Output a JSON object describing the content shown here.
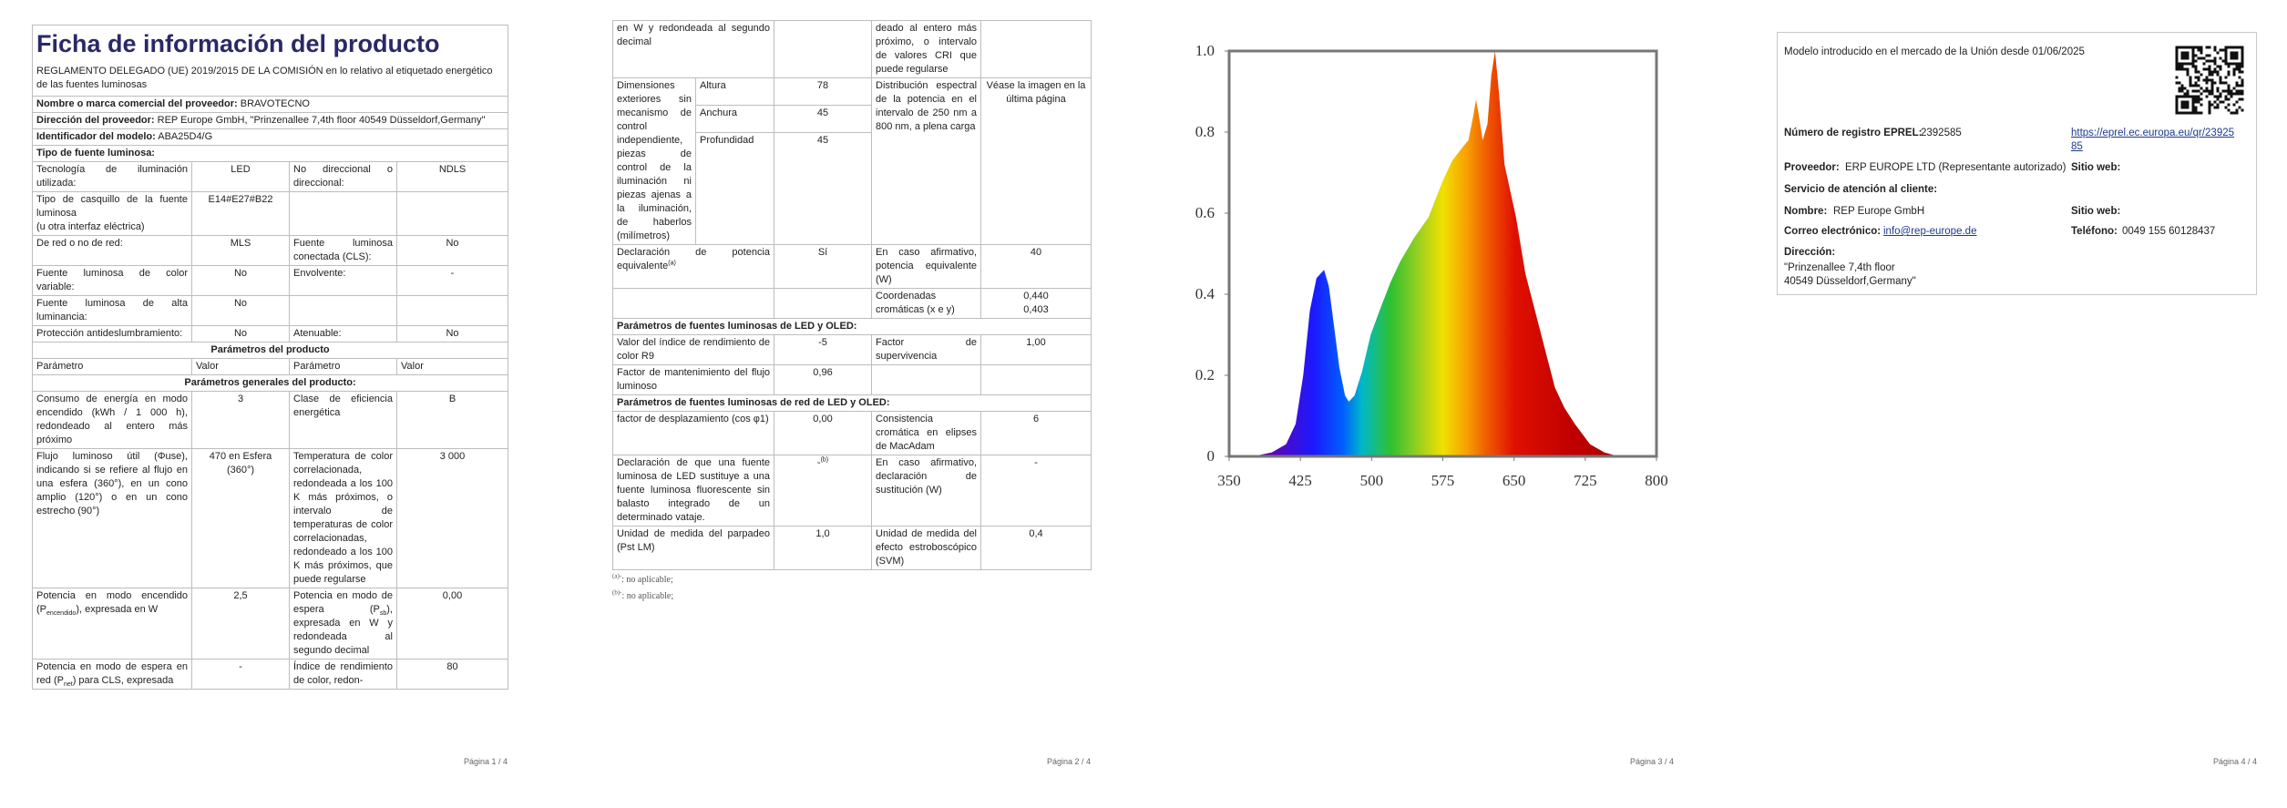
{
  "page1": {
    "title": "Ficha de información del producto",
    "regulation": "REGLAMENTO DELEGADO (UE) 2019/2015 DE LA COMISIÓN en lo relativo al etiquetado energético de las fuentes luminosas",
    "supplier_info": [
      {
        "label": "Nombre o marca comercial del proveedor:",
        "value": "BRAVOTECNO"
      },
      {
        "label": "Dirección del proveedor:",
        "value": "REP Europe GmbH, \"Prinzenallee 7,4th floor 40549 Düsseldorf,Germany\""
      },
      {
        "label": "Identificador del modelo:",
        "value": "ABA25D4/G"
      }
    ],
    "light_source_title": "Tipo de fuente luminosa:",
    "light_source_rows": [
      [
        "Tecnología de iluminación utilizada:",
        "LED",
        "No direccional o direccional:",
        "NDLS"
      ],
      [
        "Tipo de casquillo de la fuente luminosa\n(u otra interfaz eléctrica)",
        "E14#E27#B22",
        null,
        null
      ],
      [
        "De red o no de red:",
        "MLS",
        "Fuente luminosa conectada (CLS):",
        "No"
      ],
      [
        "Fuente luminosa de color variable:",
        "No",
        "Envolvente:",
        "-"
      ],
      [
        "Fuente luminosa de alta luminancia:",
        "No",
        null,
        null
      ],
      [
        "Protección antideslumbramiento:",
        "No",
        "Atenuable:",
        "No"
      ]
    ],
    "params_title": "Parámetros del producto",
    "columns": [
      "Parámetro",
      "Valor",
      "Parámetro",
      "Valor"
    ],
    "general_title": "Parámetros generales del producto:",
    "general_rows": [
      [
        "Consumo de energía en modo encendido (kWh / 1 000 h), redondeado al entero más próximo",
        "3",
        "Clase de eficiencia energética",
        "B"
      ],
      [
        "Flujo luminoso útil (Φuse), indicando si se refiere al flujo en una esfera (360°), en un cono amplio (120°) o en un cono estrecho (90°)",
        "470 en Esfera (360°)",
        "Temperatura de color correlacionada, redondeada a los 100 K más próximos, o intervalo de temperaturas de color correlacionadas, redondeado a los 100 K más próximos, que puede regularse",
        "3 000"
      ],
      [
        [
          "Potencia en modo encendido (P",
          {
            "sub": "encendido"
          },
          "), expresada en W"
        ],
        "2,5",
        [
          "Potencia en modo de espera (P",
          {
            "sub": "sb"
          },
          "), expresada en W y redondeada al segundo decimal"
        ],
        "0,00"
      ],
      [
        [
          "Potencia en modo de espera en red (P",
          {
            "sub": "net"
          },
          ") para CLS, expresada"
        ],
        "-",
        "Índice de rendimiento de color, redon-",
        "80"
      ]
    ],
    "footer": "Página 1 / 4"
  },
  "page2": {
    "continuation": [
      "en W y redondeada al segundo decimal",
      null,
      "deado al entero más próximo, o intervalo de valores CRI que puede regularse",
      null
    ],
    "dimensions": {
      "label": "Dimensiones exteriores sin mecanismo de control independiente, piezas de control de la iluminación ni piezas ajenas a la iluminación, de haberlos (milímetros)",
      "items": [
        {
          "name": "Altura",
          "value": "78"
        },
        {
          "name": "Anchura",
          "value": "45"
        },
        {
          "name": "Profundidad",
          "value": "45"
        }
      ],
      "parameter": "Distribución espectral de la potencia en el intervalo de 250 nm a 800 nm, a plena carga",
      "value": "Véase la imagen en la última página"
    },
    "equivalence_rows": [
      [
        [
          "Declaración de potencia equivalente",
          {
            "sup": "(a)"
          }
        ],
        "Sí",
        "En caso afirmativo, potencia equivalente (W)",
        "40"
      ],
      [
        null,
        null,
        "Coordenadas cromáticas (x e y)",
        "0,440\n0,403"
      ]
    ],
    "led_title": "Parámetros de fuentes luminosas de LED y OLED:",
    "led_rows": [
      [
        "Valor del índice de rendimiento de color R9",
        "-5",
        "Factor de supervivencia",
        "1,00"
      ],
      [
        "Factor de mantenimiento del flujo luminoso",
        "0,96",
        null,
        null
      ]
    ],
    "mains_title": "Parámetros de fuentes luminosas de red de LED y OLED:",
    "mains_rows": [
      [
        "factor de desplazamiento (cos φ1)",
        "0,00",
        "Consistencia cromática en elipses de MacAdam",
        "6"
      ],
      [
        "Declaración de que una fuente luminosa de LED sustituye a una fuente luminosa fluorescente sin balasto integrado de un determinado vataje.",
        [
          "-",
          {
            "sup": "(b)"
          }
        ],
        "En caso afirmativo, declaración de sustitución (W)",
        "-"
      ],
      [
        "Unidad de medida del parpadeo (Pst LM)",
        "1,0",
        "Unidad de medida del efecto estroboscópico (SVM)",
        "0,4"
      ]
    ],
    "footnotes": [
      [
        {
          "sup": "(a)-"
        },
        ": no aplicable;"
      ],
      [
        {
          "sup": "(b)-"
        },
        ": no aplicable;"
      ]
    ],
    "footer": "Página 2 / 4"
  },
  "page3": {
    "spectrum": {
      "type": "area",
      "xlim": [
        350,
        800
      ],
      "ylim": [
        0,
        1.0
      ],
      "xticks": [
        350,
        425,
        500,
        575,
        650,
        725,
        800
      ],
      "yticks": [
        0,
        0.2,
        0.4,
        0.6,
        0.8,
        {
          "value": 1.0,
          "label": "1.0"
        }
      ],
      "x": [
        375,
        395,
        410,
        420,
        428,
        435,
        442,
        450,
        455,
        460,
        466,
        472,
        476,
        482,
        490,
        499,
        510,
        520,
        530,
        545,
        560,
        575,
        585,
        595,
        602,
        607,
        610,
        613,
        617,
        622,
        626,
        630,
        634,
        640,
        652,
        662,
        672,
        683,
        693,
        703,
        714,
        730,
        745,
        760
      ],
      "values": [
        0,
        0.01,
        0.03,
        0.08,
        0.2,
        0.36,
        0.44,
        0.46,
        0.42,
        0.33,
        0.22,
        0.15,
        0.135,
        0.15,
        0.21,
        0.3,
        0.37,
        0.43,
        0.48,
        0.54,
        0.59,
        0.68,
        0.73,
        0.76,
        0.78,
        0.84,
        0.88,
        0.84,
        0.78,
        0.82,
        0.94,
        1.0,
        0.9,
        0.72,
        0.59,
        0.45,
        0.36,
        0.26,
        0.17,
        0.12,
        0.08,
        0.03,
        0.01,
        0
      ]
    },
    "footer": "Página 3 / 4"
  },
  "page4": {
    "intro": "Modelo introducido en el mercado de la Unión desde 01/06/2025",
    "eprel_label": "Número de registro EPREL:",
    "eprel": "2392585",
    "link": "https://eprel.ec.europa.eu/qr/2392585",
    "supplier_label": "Proveedor:",
    "supplier": "ERP EUROPE LTD (Representante autorizado)",
    "website_label": "Sitio web:",
    "service_title": "Servicio de atención al cliente:",
    "name_label": "Nombre:",
    "name": "REP Europe GmbH",
    "service_website_label": "Sitio web:",
    "email_label": "Correo electrónico:",
    "email": "info@rep-europe.de",
    "phone_label": "Teléfono:",
    "phone": "0049 155 60128437",
    "address_label": "Dirección:",
    "address": "\"Prinzenallee 7,4th floor\n40549 Düsseldorf,Germany\"",
    "footer": "Página 4 / 4"
  }
}
